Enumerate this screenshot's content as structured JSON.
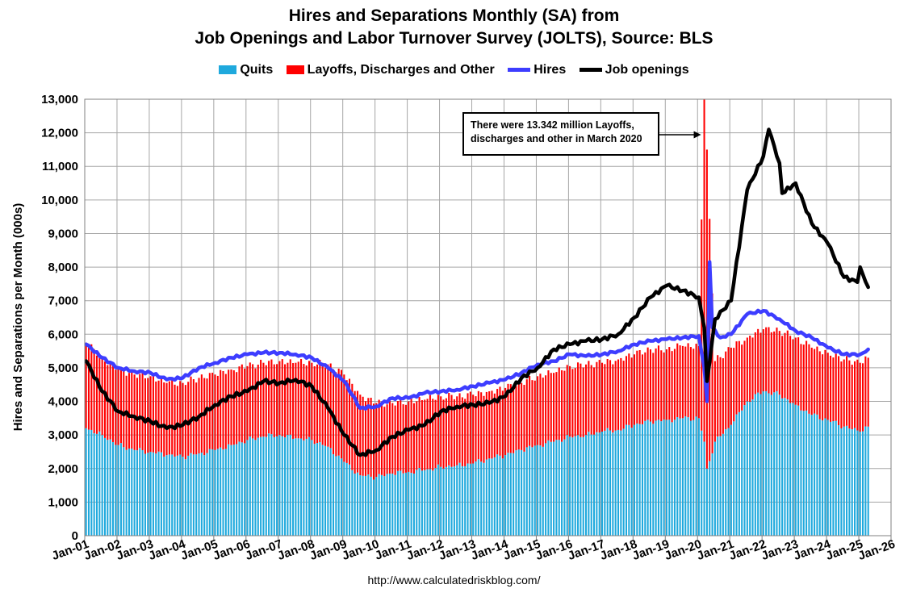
{
  "chart_data": {
    "type": "bar",
    "title": [
      "Hires and Separations Monthly (SA) from",
      "Job Openings and Labor Turnover Survey (JOLTS), Source: BLS"
    ],
    "ylabel": "Hires and Separations per Month (000s)",
    "ylim": [
      0,
      13000
    ],
    "yticks": [
      "0",
      "1,000",
      "2,000",
      "3,000",
      "4,000",
      "5,000",
      "6,000",
      "7,000",
      "8,000",
      "9,000",
      "10,000",
      "11,000",
      "12,000",
      "13,000"
    ],
    "xticks": [
      "Jan-01",
      "Jan-02",
      "Jan-03",
      "Jan-04",
      "Jan-05",
      "Jan-06",
      "Jan-07",
      "Jan-08",
      "Jan-09",
      "Jan-10",
      "Jan-11",
      "Jan-12",
      "Jan-13",
      "Jan-14",
      "Jan-15",
      "Jan-16",
      "Jan-17",
      "Jan-18",
      "Jan-19",
      "Jan-20",
      "Jan-21",
      "Jan-22",
      "Jan-23",
      "Jan-24",
      "Jan-25",
      "Jan-26"
    ],
    "xrange": [
      "2001-01",
      "2026-01"
    ],
    "stacked": true,
    "grid": true,
    "legend_position": "top",
    "series": [
      {
        "name": "Quits",
        "kind": "bar",
        "color": "#1FA9DD",
        "points": [
          [
            "2001-01",
            3200
          ],
          [
            "2001-07",
            3000
          ],
          [
            "2002-01",
            2700
          ],
          [
            "2002-07",
            2550
          ],
          [
            "2003-01",
            2500
          ],
          [
            "2003-07",
            2400
          ],
          [
            "2004-01",
            2350
          ],
          [
            "2004-07",
            2450
          ],
          [
            "2005-01",
            2550
          ],
          [
            "2005-07",
            2700
          ],
          [
            "2006-01",
            2850
          ],
          [
            "2006-07",
            2950
          ],
          [
            "2007-01",
            3000
          ],
          [
            "2007-07",
            2900
          ],
          [
            "2008-01",
            2850
          ],
          [
            "2008-07",
            2650
          ],
          [
            "2009-01",
            2200
          ],
          [
            "2009-07",
            1800
          ],
          [
            "2010-01",
            1750
          ],
          [
            "2010-07",
            1850
          ],
          [
            "2011-01",
            1900
          ],
          [
            "2011-07",
            1950
          ],
          [
            "2012-01",
            2050
          ],
          [
            "2012-07",
            2100
          ],
          [
            "2013-01",
            2150
          ],
          [
            "2013-07",
            2300
          ],
          [
            "2014-01",
            2400
          ],
          [
            "2014-07",
            2550
          ],
          [
            "2015-01",
            2700
          ],
          [
            "2015-07",
            2800
          ],
          [
            "2016-01",
            2950
          ],
          [
            "2016-07",
            3000
          ],
          [
            "2017-01",
            3100
          ],
          [
            "2017-07",
            3150
          ],
          [
            "2018-01",
            3300
          ],
          [
            "2018-07",
            3400
          ],
          [
            "2019-01",
            3450
          ],
          [
            "2019-07",
            3500
          ],
          [
            "2020-01",
            3500
          ],
          [
            "2020-03",
            2800
          ],
          [
            "2020-04",
            2000
          ],
          [
            "2020-07",
            2800
          ],
          [
            "2021-01",
            3300
          ],
          [
            "2021-07",
            4000
          ],
          [
            "2022-01",
            4300
          ],
          [
            "2022-07",
            4200
          ],
          [
            "2023-01",
            3900
          ],
          [
            "2023-07",
            3600
          ],
          [
            "2024-01",
            3450
          ],
          [
            "2024-07",
            3250
          ],
          [
            "2025-01",
            3100
          ],
          [
            "2025-04",
            3250
          ]
        ]
      },
      {
        "name": "Layoffs, Discharges and Other",
        "kind": "bar",
        "color": "#FF0000",
        "points": [
          [
            "2001-01",
            2550
          ],
          [
            "2001-07",
            2300
          ],
          [
            "2002-01",
            2250
          ],
          [
            "2002-07",
            2250
          ],
          [
            "2003-01",
            2250
          ],
          [
            "2003-07",
            2150
          ],
          [
            "2004-01",
            2200
          ],
          [
            "2004-07",
            2250
          ],
          [
            "2005-01",
            2250
          ],
          [
            "2005-07",
            2250
          ],
          [
            "2006-01",
            2200
          ],
          [
            "2006-07",
            2200
          ],
          [
            "2007-01",
            2200
          ],
          [
            "2007-07",
            2250
          ],
          [
            "2008-01",
            2300
          ],
          [
            "2008-07",
            2450
          ],
          [
            "2009-01",
            2600
          ],
          [
            "2009-07",
            2400
          ],
          [
            "2010-01",
            2200
          ],
          [
            "2010-07",
            2100
          ],
          [
            "2011-01",
            2100
          ],
          [
            "2011-07",
            2100
          ],
          [
            "2012-01",
            2100
          ],
          [
            "2012-07",
            2050
          ],
          [
            "2013-01",
            2050
          ],
          [
            "2013-07",
            2000
          ],
          [
            "2014-01",
            2000
          ],
          [
            "2014-07",
            2000
          ],
          [
            "2015-01",
            2050
          ],
          [
            "2015-07",
            2050
          ],
          [
            "2016-01",
            2100
          ],
          [
            "2016-07",
            2100
          ],
          [
            "2017-01",
            2050
          ],
          [
            "2017-07",
            2100
          ],
          [
            "2018-01",
            2100
          ],
          [
            "2018-07",
            2150
          ],
          [
            "2019-01",
            2100
          ],
          [
            "2019-07",
            2150
          ],
          [
            "2020-01",
            2150
          ],
          [
            "2020-03",
            10540
          ],
          [
            "2020-04",
            9500
          ],
          [
            "2020-07",
            2400
          ],
          [
            "2021-01",
            2300
          ],
          [
            "2021-07",
            1900
          ],
          [
            "2022-01",
            1850
          ],
          [
            "2022-07",
            1900
          ],
          [
            "2023-01",
            2000
          ],
          [
            "2023-07",
            2000
          ],
          [
            "2024-01",
            2000
          ],
          [
            "2024-07",
            2000
          ],
          [
            "2025-01",
            2050
          ],
          [
            "2025-04",
            2050
          ]
        ]
      },
      {
        "name": "Hires",
        "kind": "line",
        "color": "#3D3DFF",
        "points": [
          [
            "2001-01",
            5700
          ],
          [
            "2001-07",
            5300
          ],
          [
            "2002-01",
            5000
          ],
          [
            "2002-07",
            4900
          ],
          [
            "2003-01",
            4850
          ],
          [
            "2003-07",
            4650
          ],
          [
            "2004-01",
            4700
          ],
          [
            "2004-07",
            5000
          ],
          [
            "2005-01",
            5150
          ],
          [
            "2005-07",
            5300
          ],
          [
            "2006-01",
            5400
          ],
          [
            "2006-07",
            5450
          ],
          [
            "2007-01",
            5450
          ],
          [
            "2007-07",
            5400
          ],
          [
            "2008-01",
            5300
          ],
          [
            "2008-07",
            5000
          ],
          [
            "2009-01",
            4600
          ],
          [
            "2009-07",
            3800
          ],
          [
            "2010-01",
            3850
          ],
          [
            "2010-07",
            4100
          ],
          [
            "2011-01",
            4100
          ],
          [
            "2011-07",
            4250
          ],
          [
            "2012-01",
            4300
          ],
          [
            "2012-07",
            4350
          ],
          [
            "2013-01",
            4450
          ],
          [
            "2013-07",
            4550
          ],
          [
            "2014-01",
            4650
          ],
          [
            "2014-07",
            4850
          ],
          [
            "2015-01",
            5100
          ],
          [
            "2015-07",
            5200
          ],
          [
            "2016-01",
            5400
          ],
          [
            "2016-07",
            5350
          ],
          [
            "2017-01",
            5400
          ],
          [
            "2017-07",
            5500
          ],
          [
            "2018-01",
            5700
          ],
          [
            "2018-07",
            5800
          ],
          [
            "2019-01",
            5850
          ],
          [
            "2019-07",
            5900
          ],
          [
            "2020-01",
            5950
          ],
          [
            "2020-03",
            5000
          ],
          [
            "2020-04",
            4000
          ],
          [
            "2020-05",
            8150
          ],
          [
            "2020-06",
            6200
          ],
          [
            "2020-09",
            5900
          ],
          [
            "2021-01",
            6000
          ],
          [
            "2021-07",
            6600
          ],
          [
            "2022-01",
            6700
          ],
          [
            "2022-07",
            6450
          ],
          [
            "2023-01",
            6100
          ],
          [
            "2023-07",
            5900
          ],
          [
            "2024-01",
            5600
          ],
          [
            "2024-07",
            5400
          ],
          [
            "2025-01",
            5400
          ],
          [
            "2025-04",
            5550
          ]
        ]
      },
      {
        "name": "Job openings",
        "kind": "line",
        "color": "#000000",
        "points": [
          [
            "2001-01",
            5200
          ],
          [
            "2001-07",
            4300
          ],
          [
            "2002-01",
            3700
          ],
          [
            "2002-07",
            3550
          ],
          [
            "2003-01",
            3400
          ],
          [
            "2003-07",
            3200
          ],
          [
            "2004-01",
            3300
          ],
          [
            "2004-07",
            3550
          ],
          [
            "2005-01",
            3900
          ],
          [
            "2005-07",
            4150
          ],
          [
            "2006-01",
            4300
          ],
          [
            "2006-07",
            4600
          ],
          [
            "2007-01",
            4550
          ],
          [
            "2007-07",
            4650
          ],
          [
            "2008-01",
            4450
          ],
          [
            "2008-07",
            3800
          ],
          [
            "2009-01",
            3000
          ],
          [
            "2009-07",
            2400
          ],
          [
            "2010-01",
            2550
          ],
          [
            "2010-07",
            2950
          ],
          [
            "2011-01",
            3150
          ],
          [
            "2011-07",
            3300
          ],
          [
            "2012-01",
            3700
          ],
          [
            "2012-07",
            3850
          ],
          [
            "2013-01",
            3900
          ],
          [
            "2013-07",
            3950
          ],
          [
            "2014-01",
            4150
          ],
          [
            "2014-07",
            4700
          ],
          [
            "2015-01",
            5000
          ],
          [
            "2015-07",
            5550
          ],
          [
            "2016-01",
            5700
          ],
          [
            "2016-07",
            5800
          ],
          [
            "2017-01",
            5850
          ],
          [
            "2017-07",
            6000
          ],
          [
            "2018-01",
            6500
          ],
          [
            "2018-07",
            7100
          ],
          [
            "2019-01",
            7450
          ],
          [
            "2019-07",
            7300
          ],
          [
            "2020-01",
            7100
          ],
          [
            "2020-03",
            6200
          ],
          [
            "2020-04",
            4600
          ],
          [
            "2020-07",
            6450
          ],
          [
            "2021-01",
            7000
          ],
          [
            "2021-07",
            10300
          ],
          [
            "2022-01",
            11300
          ],
          [
            "2022-03",
            12100
          ],
          [
            "2022-07",
            11100
          ],
          [
            "2022-08",
            10200
          ],
          [
            "2023-01",
            10500
          ],
          [
            "2023-07",
            9300
          ],
          [
            "2024-01",
            8700
          ],
          [
            "2024-07",
            7700
          ],
          [
            "2024-12",
            7550
          ],
          [
            "2025-01",
            8000
          ],
          [
            "2025-04",
            7400
          ]
        ]
      }
    ],
    "annotation": [
      "There were 13.342 million Layoffs,",
      "discharges and other in March 2020"
    ],
    "source": "http://www.calculatedriskblog.com/"
  }
}
